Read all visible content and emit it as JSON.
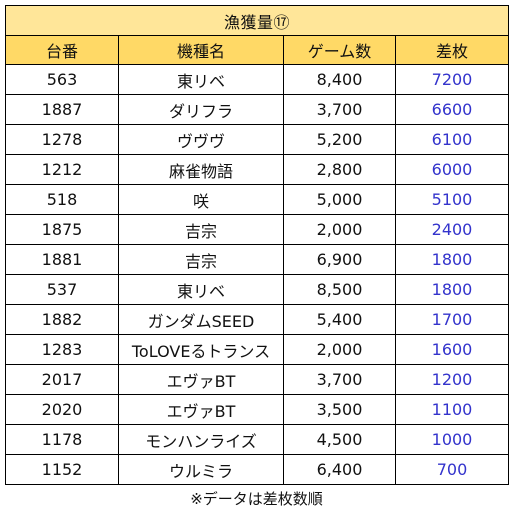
{
  "title": "漁獲量⑰",
  "headers": [
    "台番",
    "機種名",
    "ゲーム数",
    "差枚"
  ],
  "rows": [
    {
      "no": "563",
      "name": "東リベ",
      "games": "8,400",
      "diff": "7200"
    },
    {
      "no": "1887",
      "name": "ダリフラ",
      "games": "3,700",
      "diff": "6600"
    },
    {
      "no": "1278",
      "name": "ヴヴヴ",
      "games": "5,200",
      "diff": "6100"
    },
    {
      "no": "1212",
      "name": "麻雀物語",
      "games": "2,800",
      "diff": "6000"
    },
    {
      "no": "518",
      "name": "咲",
      "games": "5,000",
      "diff": "5100"
    },
    {
      "no": "1875",
      "name": "吉宗",
      "games": "2,000",
      "diff": "2400"
    },
    {
      "no": "1881",
      "name": "吉宗",
      "games": "6,900",
      "diff": "1800"
    },
    {
      "no": "537",
      "name": "東リベ",
      "games": "8,500",
      "diff": "1800"
    },
    {
      "no": "1882",
      "name": "ガンダムSEED",
      "games": "5,400",
      "diff": "1700"
    },
    {
      "no": "1283",
      "name": "ToLOVEるトランス",
      "games": "2,000",
      "diff": "1600"
    },
    {
      "no": "2017",
      "name": "エヴァBT",
      "games": "3,700",
      "diff": "1200"
    },
    {
      "no": "2020",
      "name": "エヴァBT",
      "games": "3,500",
      "diff": "1100"
    },
    {
      "no": "1178",
      "name": "モンハンライズ",
      "games": "4,500",
      "diff": "1000"
    },
    {
      "no": "1152",
      "name": "ウルミラ",
      "games": "6,400",
      "diff": "700"
    }
  ],
  "footnote": "※データは差枚数順",
  "colors": {
    "title_bg": "#FFE699",
    "header_bg": "#FFD966",
    "diff_text": "#3333CC",
    "border": "#000000"
  }
}
